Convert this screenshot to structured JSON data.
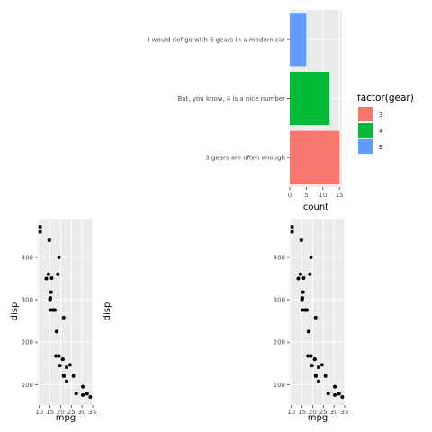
{
  "chart_data": [
    {
      "type": "bar",
      "orientation": "horizontal",
      "categories": [
        "3 gears are often enough",
        "But, you know, 4 is a nice number",
        "I would def go with 5 gears in a modern car"
      ],
      "values": [
        15,
        12,
        5
      ],
      "fill_keys": [
        "3",
        "4",
        "5"
      ],
      "colors": [
        "#F8766D",
        "#00BA38",
        "#619CFF"
      ],
      "xlabel": "count",
      "ylabel": "",
      "xlim": [
        0,
        15.75
      ],
      "xticks": [
        0,
        5,
        10,
        15
      ],
      "xtick_labels": [
        "0",
        "5",
        "10",
        "15"
      ],
      "grid": true,
      "legend": {
        "title": "factor(gear)",
        "position": "right",
        "labels": [
          "3",
          "4",
          "5"
        ],
        "colors": [
          "#F8766D",
          "#00BA38",
          "#619CFF"
        ]
      }
    },
    {
      "type": "scatter",
      "xlabel": "mpg",
      "ylabel": "disp",
      "xlim": [
        9.3,
        35.0
      ],
      "ylim": [
        52,
        491
      ],
      "xticks": [
        10,
        15,
        20,
        25,
        30,
        35
      ],
      "xtick_labels": [
        "10",
        "15",
        "20",
        "25",
        "30",
        "35"
      ],
      "yticks": [
        100,
        200,
        300,
        400
      ],
      "ytick_labels": [
        "100",
        "200",
        "300",
        "400"
      ],
      "grid": true,
      "points": [
        [
          21.0,
          160
        ],
        [
          21.0,
          160
        ],
        [
          22.8,
          108
        ],
        [
          21.4,
          258
        ],
        [
          18.7,
          360
        ],
        [
          18.1,
          225
        ],
        [
          14.3,
          360
        ],
        [
          24.4,
          146.7
        ],
        [
          22.8,
          140.8
        ],
        [
          19.2,
          167.6
        ],
        [
          17.8,
          167.6
        ],
        [
          16.4,
          275.8
        ],
        [
          17.3,
          275.8
        ],
        [
          15.2,
          275.8
        ],
        [
          10.4,
          472
        ],
        [
          10.4,
          460
        ],
        [
          14.7,
          440
        ],
        [
          32.4,
          78.7
        ],
        [
          30.4,
          75.7
        ],
        [
          33.9,
          71.1
        ],
        [
          21.5,
          120.1
        ],
        [
          15.5,
          318
        ],
        [
          15.2,
          304
        ],
        [
          13.3,
          350
        ],
        [
          19.2,
          400
        ],
        [
          27.3,
          79
        ],
        [
          26.0,
          120.3
        ],
        [
          30.4,
          95.1
        ],
        [
          15.8,
          351
        ],
        [
          19.7,
          145
        ],
        [
          15.0,
          301
        ],
        [
          21.4,
          121
        ]
      ]
    },
    {
      "type": "scatter",
      "xlabel": "",
      "ylabel": "disp",
      "grid": false,
      "points": []
    },
    {
      "type": "scatter",
      "xlabel": "mpg",
      "ylabel": "disp",
      "xlim": [
        9.3,
        35.0
      ],
      "ylim": [
        52,
        491
      ],
      "xticks": [
        10,
        15,
        20,
        25,
        30,
        35
      ],
      "xtick_labels": [
        "10",
        "15",
        "20",
        "25",
        "30",
        "35"
      ],
      "yticks": [
        100,
        200,
        300,
        400
      ],
      "ytick_labels": [
        "100",
        "200",
        "300",
        "400"
      ],
      "grid": true,
      "points": [
        [
          21.0,
          160
        ],
        [
          21.0,
          160
        ],
        [
          22.8,
          108
        ],
        [
          21.4,
          258
        ],
        [
          18.7,
          360
        ],
        [
          18.1,
          225
        ],
        [
          14.3,
          360
        ],
        [
          24.4,
          146.7
        ],
        [
          22.8,
          140.8
        ],
        [
          19.2,
          167.6
        ],
        [
          17.8,
          167.6
        ],
        [
          16.4,
          275.8
        ],
        [
          17.3,
          275.8
        ],
        [
          15.2,
          275.8
        ],
        [
          10.4,
          472
        ],
        [
          10.4,
          460
        ],
        [
          14.7,
          440
        ],
        [
          32.4,
          78.7
        ],
        [
          30.4,
          75.7
        ],
        [
          33.9,
          71.1
        ],
        [
          21.5,
          120.1
        ],
        [
          15.5,
          318
        ],
        [
          15.2,
          304
        ],
        [
          13.3,
          350
        ],
        [
          19.2,
          400
        ],
        [
          27.3,
          79
        ],
        [
          26.0,
          120.3
        ],
        [
          30.4,
          95.1
        ],
        [
          15.8,
          351
        ],
        [
          19.7,
          145
        ],
        [
          15.0,
          301
        ],
        [
          21.4,
          121
        ]
      ]
    }
  ]
}
